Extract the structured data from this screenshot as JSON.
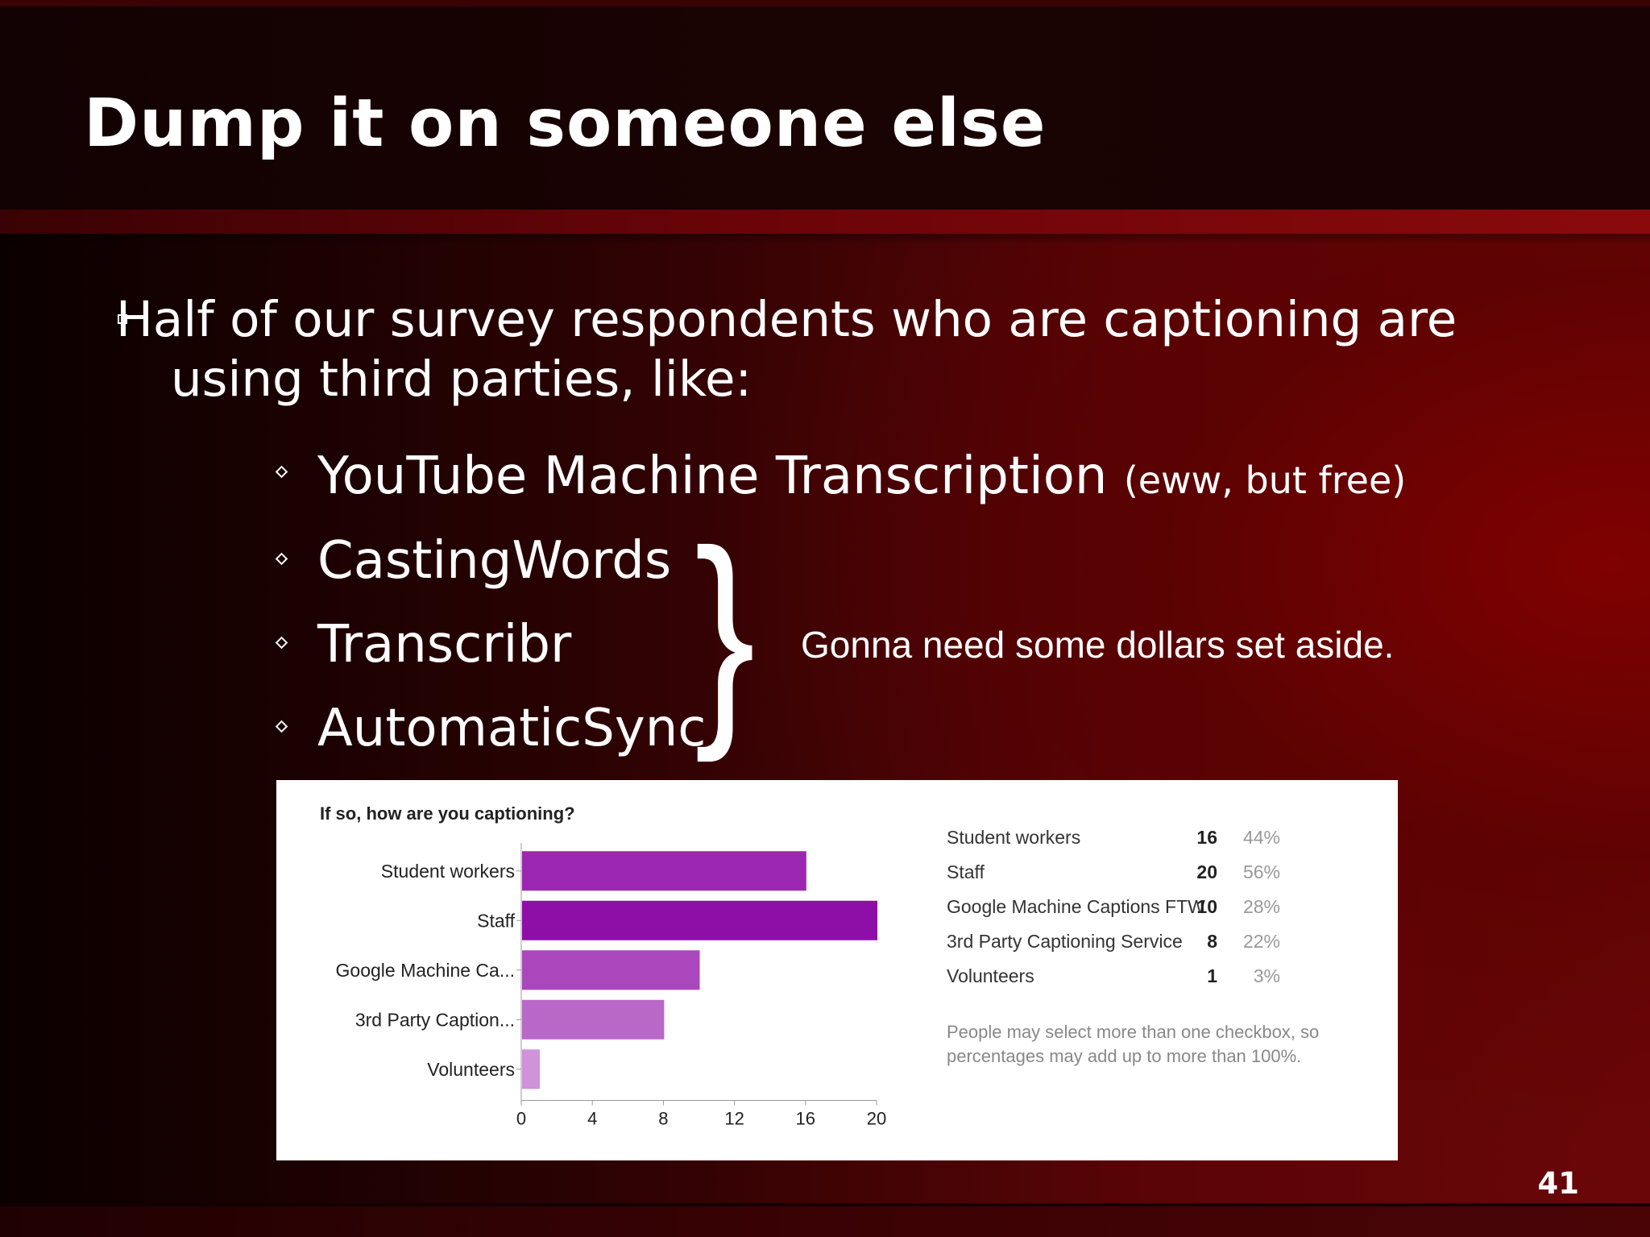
{
  "slide": {
    "title": "Dump it on someone else",
    "bullet": "Half of our survey respondents who are captioning are using third parties, like:",
    "sub_bullets": [
      {
        "text": "YouTube Machine Transcription",
        "note": "(eww, but free)"
      },
      {
        "text": "CastingWords",
        "note": ""
      },
      {
        "text": "Transcribr",
        "note": ""
      },
      {
        "text": "AutomaticSync",
        "note": ""
      }
    ],
    "brace_note": "Gonna need some dollars set aside.",
    "page_number": "41"
  },
  "survey": {
    "question": "If so, how are you captioning?",
    "summary": [
      {
        "label": "Student workers",
        "count": "16",
        "percent": "44%"
      },
      {
        "label": "Staff",
        "count": "20",
        "percent": "56%"
      },
      {
        "label": "Google Machine Captions FTW",
        "count": "10",
        "percent": "28%"
      },
      {
        "label": "3rd Party Captioning Service",
        "count": "8",
        "percent": "22%"
      },
      {
        "label": "Volunteers",
        "count": "1",
        "percent": "3%"
      }
    ],
    "note": "People may select more than one checkbox, so percentages may add up to more than 100%."
  },
  "chart_data": {
    "type": "bar",
    "orientation": "horizontal",
    "title": "If so, how are you captioning?",
    "categories": [
      "Student workers",
      "Staff",
      "Google Machine Ca...",
      "3rd Party Caption...",
      "Volunteers"
    ],
    "values": [
      16,
      20,
      10,
      8,
      1
    ],
    "colors": [
      "#9c27b0",
      "#8e0fa8",
      "#ab47bc",
      "#ba68c8",
      "#ce93d8"
    ],
    "xticks": [
      0,
      4,
      8,
      12,
      16,
      20
    ],
    "xlim": [
      0,
      20
    ],
    "xlabel": "",
    "ylabel": "",
    "grid": false,
    "legend": "none"
  }
}
